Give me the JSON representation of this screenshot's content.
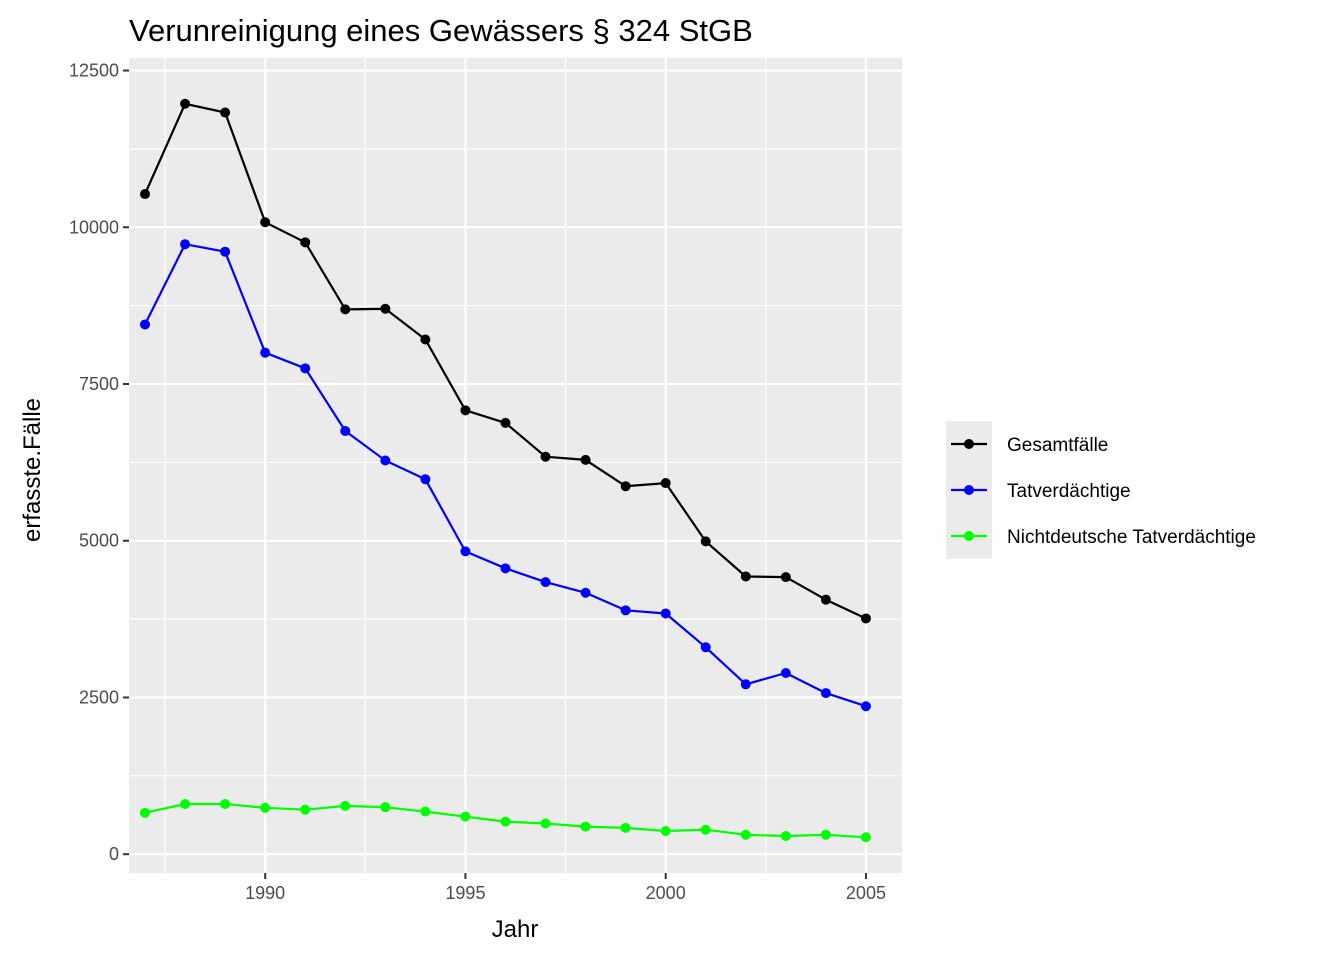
{
  "chart_data": {
    "type": "line",
    "title": "Verunreinigung eines Gewässers § 324 StGB",
    "xlabel": "Jahr",
    "ylabel": "erfasste.Fälle",
    "xlim": [
      1986.6,
      2005.9
    ],
    "ylim": [
      -300,
      12700
    ],
    "x_ticks": [
      1990,
      1995,
      2000,
      2005
    ],
    "x_tick_labels": [
      "1990",
      "1995",
      "2000",
      "2005"
    ],
    "y_ticks": [
      0,
      2500,
      5000,
      7500,
      10000,
      12500
    ],
    "y_tick_labels": [
      "0",
      "2500",
      "5000",
      "7500",
      "10000",
      "12500"
    ],
    "grid": true,
    "legend_position": "right",
    "x": [
      1987,
      1988,
      1989,
      1990,
      1991,
      1992,
      1993,
      1994,
      1995,
      1996,
      1997,
      1998,
      1999,
      2000,
      2001,
      2002,
      2003,
      2004,
      2005
    ],
    "series": [
      {
        "name": "Gesamtfälle",
        "color": "#000000",
        "values": [
          10530,
          11970,
          11830,
          10080,
          9760,
          8690,
          8700,
          8210,
          7080,
          6880,
          6340,
          6290,
          5870,
          5920,
          4990,
          4430,
          4420,
          4060,
          3760
        ]
      },
      {
        "name": "Tatverdächtige",
        "color": "#0000ff",
        "values": [
          8450,
          9730,
          9610,
          8000,
          7750,
          6750,
          6280,
          5980,
          4830,
          4560,
          4340,
          4170,
          3890,
          3840,
          3300,
          2710,
          2890,
          2570,
          2360
        ]
      },
      {
        "name": "Nichtdeutsche Tatverdächtige",
        "color": "#00ff00",
        "values": [
          660,
          800,
          800,
          740,
          710,
          770,
          750,
          680,
          600,
          520,
          490,
          440,
          420,
          370,
          390,
          310,
          290,
          310,
          270
        ]
      }
    ]
  },
  "colors": {
    "panel_background": "#ebebeb",
    "grid": "#ffffff",
    "tick_text": "#4d4d4d"
  }
}
